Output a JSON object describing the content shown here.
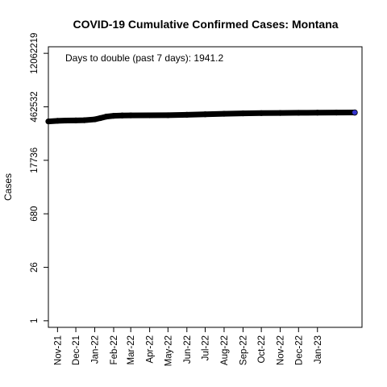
{
  "chart_data": {
    "type": "line",
    "title": "COVID-19 Cumulative Confirmed Cases: Montana",
    "annotation": "Days to double (past 7 days): 1941.2",
    "xlabel": "",
    "ylabel": "Cases",
    "y_scale": "log",
    "y_ticks": [
      1,
      26,
      680,
      17736,
      462532,
      12062219
    ],
    "ylim": [
      0.67,
      18000000
    ],
    "x_ticks": [
      {
        "date": "2021-11-01",
        "label": "Nov-21"
      },
      {
        "date": "2021-12-01",
        "label": "Dec-21"
      },
      {
        "date": "2022-01-01",
        "label": "Jan-22"
      },
      {
        "date": "2022-02-01",
        "label": "Feb-22"
      },
      {
        "date": "2022-03-01",
        "label": "Mar-22"
      },
      {
        "date": "2022-04-01",
        "label": "Apr-22"
      },
      {
        "date": "2022-05-01",
        "label": "May-22"
      },
      {
        "date": "2022-06-01",
        "label": "Jun-22"
      },
      {
        "date": "2022-07-01",
        "label": "Jul-22"
      },
      {
        "date": "2022-08-01",
        "label": "Aug-22"
      },
      {
        "date": "2022-09-01",
        "label": "Sep-22"
      },
      {
        "date": "2022-10-01",
        "label": "Oct-22"
      },
      {
        "date": "2022-11-01",
        "label": "Nov-22"
      },
      {
        "date": "2022-12-01",
        "label": "Dec-22"
      },
      {
        "date": "2023-01-01",
        "label": "Jan-23"
      }
    ],
    "xlim": [
      "2021-10-17",
      "2023-03-15"
    ],
    "grid": false,
    "series": [
      {
        "color": "#000000",
        "end_marker_color": "#3333cc",
        "points": [
          {
            "x": "2021-10-17",
            "y": 190000
          },
          {
            "x": "2021-11-01",
            "y": 197000
          },
          {
            "x": "2021-11-15",
            "y": 200000
          },
          {
            "x": "2021-12-01",
            "y": 202000
          },
          {
            "x": "2021-12-15",
            "y": 204000
          },
          {
            "x": "2022-01-01",
            "y": 215000
          },
          {
            "x": "2022-01-10",
            "y": 232000
          },
          {
            "x": "2022-01-20",
            "y": 255000
          },
          {
            "x": "2022-02-01",
            "y": 267000
          },
          {
            "x": "2022-02-15",
            "y": 272000
          },
          {
            "x": "2022-03-01",
            "y": 274000
          },
          {
            "x": "2022-04-01",
            "y": 275000
          },
          {
            "x": "2022-05-01",
            "y": 277000
          },
          {
            "x": "2022-06-01",
            "y": 284000
          },
          {
            "x": "2022-07-01",
            "y": 293000
          },
          {
            "x": "2022-08-01",
            "y": 303000
          },
          {
            "x": "2022-09-01",
            "y": 310000
          },
          {
            "x": "2022-10-01",
            "y": 315000
          },
          {
            "x": "2022-11-01",
            "y": 318000
          },
          {
            "x": "2022-12-01",
            "y": 321000
          },
          {
            "x": "2023-01-01",
            "y": 324000
          },
          {
            "x": "2023-02-01",
            "y": 326000
          },
          {
            "x": "2023-03-03",
            "y": 327000
          }
        ]
      }
    ]
  }
}
